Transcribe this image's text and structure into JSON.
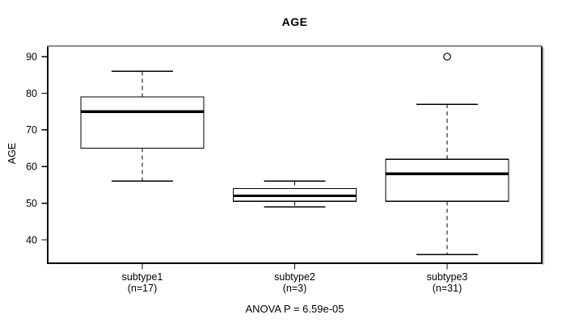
{
  "chart_data": {
    "type": "boxplot",
    "title": "AGE",
    "xlabel": "",
    "ylabel": "AGE",
    "annotation": "ANOVA P = 6.59e-05",
    "ylim": [
      33.6,
      92.9
    ],
    "y_ticks": [
      40,
      50,
      60,
      70,
      80,
      90
    ],
    "grid": false,
    "legend": "none",
    "categories": [
      "subtype1",
      "subtype2",
      "subtype3"
    ],
    "groups": [
      {
        "label": "subtype1",
        "sublabel": "(n=17)",
        "n": 17,
        "whisker_low": 56,
        "q1": 65,
        "median": 75,
        "q3": 79,
        "whisker_high": 86,
        "outliers": []
      },
      {
        "label": "subtype2",
        "sublabel": "(n=3)",
        "n": 3,
        "whisker_low": 49,
        "q1": 50.5,
        "median": 52,
        "q3": 54,
        "whisker_high": 56,
        "outliers": []
      },
      {
        "label": "subtype3",
        "sublabel": "(n=31)",
        "n": 31,
        "whisker_low": 36,
        "q1": 50.5,
        "median": 58,
        "q3": 62,
        "whisker_high": 77,
        "outliers": [
          90
        ]
      }
    ],
    "colors": {
      "line": "#000000",
      "box_fill": "#ffffff",
      "plot_background": "#ffffff",
      "border_top_gray": "#8c8c8c",
      "border_shadow_gray": "#b4b4b4"
    }
  }
}
